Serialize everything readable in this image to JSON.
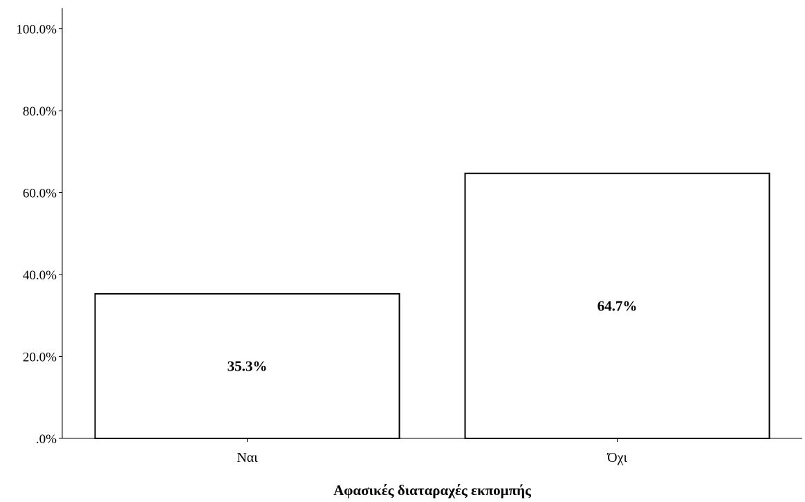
{
  "chart_data": {
    "type": "bar",
    "categories": [
      "Ναι",
      "Όχι"
    ],
    "values": [
      35.3,
      64.7
    ],
    "data_labels": [
      "35.3%",
      "64.7%"
    ],
    "title": "",
    "xlabel": "Αφασικές διαταραχές εκπομπής",
    "ylabel": "",
    "ylim": [
      0,
      105
    ],
    "yticks": [
      0,
      20,
      40,
      60,
      80,
      100
    ],
    "ytick_labels": [
      ".0%",
      "20.0%",
      "40.0%",
      "60.0%",
      "80.0%",
      "100.0%"
    ],
    "grid": false,
    "legend": "none",
    "colors": {
      "bar_fill": "#ffffff",
      "bar_stroke": "#000000",
      "axis": "#000000"
    }
  }
}
